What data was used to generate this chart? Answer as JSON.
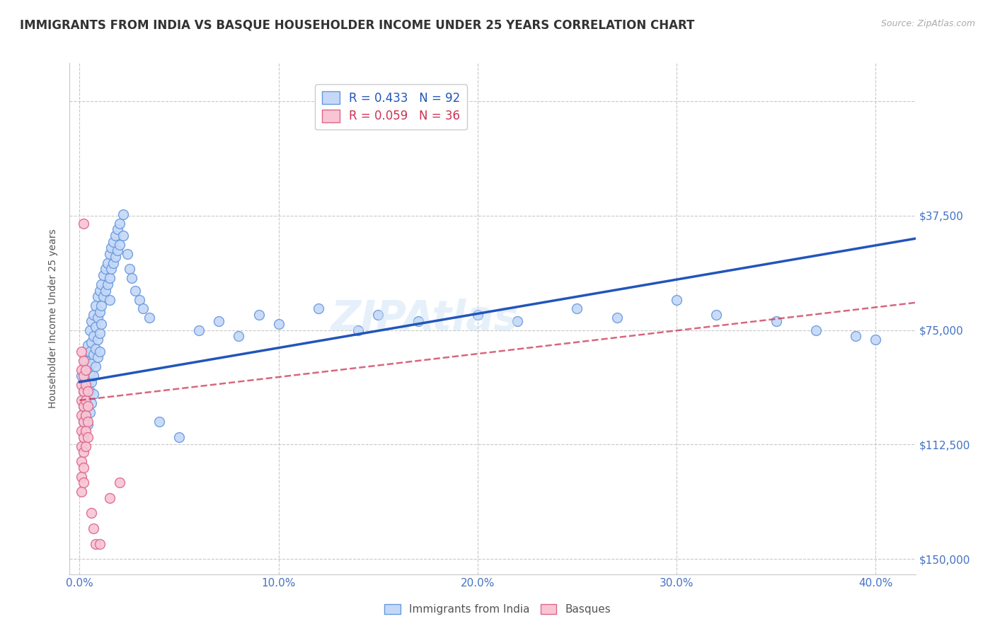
{
  "title": "IMMIGRANTS FROM INDIA VS BASQUE HOUSEHOLDER INCOME UNDER 25 YEARS CORRELATION CHART",
  "source": "Source: ZipAtlas.com",
  "xlabel_ticks": [
    "0.0%",
    "10.0%",
    "20.0%",
    "30.0%",
    "40.0%"
  ],
  "xlabel_tick_vals": [
    0.0,
    0.1,
    0.2,
    0.3,
    0.4
  ],
  "ylabel": "Householder Income Under 25 years",
  "ylabel_ticks": [
    0,
    37500,
    75000,
    112500,
    150000
  ],
  "ylabel_tick_labels_right": [
    "$150,000",
    "$112,500",
    "$75,000",
    "$37,500",
    ""
  ],
  "ylabel_tick_labels_left": [
    "",
    "",
    "",
    "",
    ""
  ],
  "xlim": [
    -0.005,
    0.42
  ],
  "ylim": [
    -5000,
    162500
  ],
  "legend_entries": [
    {
      "label_r": "R = 0.433",
      "label_n": "N = 92",
      "color": "#aec6f5"
    },
    {
      "label_r": "R = 0.059",
      "label_n": "N = 36",
      "color": "#f5aec6"
    }
  ],
  "watermark": "ZIPAtlas",
  "title_color": "#333333",
  "axis_color": "#4472c4",
  "grid_color": "#c8c8c8",
  "india_color": "#c5d8f8",
  "india_edge_color": "#6699dd",
  "india_line_color": "#2255bb",
  "basque_color": "#f8c5d5",
  "basque_edge_color": "#dd6688",
  "basque_line_color": "#cc3355",
  "india_scatter": [
    [
      0.001,
      60000
    ],
    [
      0.002,
      55000
    ],
    [
      0.002,
      50000
    ],
    [
      0.002,
      45000
    ],
    [
      0.003,
      65000
    ],
    [
      0.003,
      58000
    ],
    [
      0.003,
      52000
    ],
    [
      0.003,
      47000
    ],
    [
      0.004,
      70000
    ],
    [
      0.004,
      63000
    ],
    [
      0.004,
      57000
    ],
    [
      0.004,
      50000
    ],
    [
      0.004,
      44000
    ],
    [
      0.005,
      75000
    ],
    [
      0.005,
      68000
    ],
    [
      0.005,
      61000
    ],
    [
      0.005,
      55000
    ],
    [
      0.005,
      48000
    ],
    [
      0.006,
      78000
    ],
    [
      0.006,
      71000
    ],
    [
      0.006,
      64000
    ],
    [
      0.006,
      58000
    ],
    [
      0.006,
      51000
    ],
    [
      0.007,
      80000
    ],
    [
      0.007,
      73000
    ],
    [
      0.007,
      67000
    ],
    [
      0.007,
      60000
    ],
    [
      0.007,
      54000
    ],
    [
      0.008,
      83000
    ],
    [
      0.008,
      76000
    ],
    [
      0.008,
      69000
    ],
    [
      0.008,
      63000
    ],
    [
      0.009,
      86000
    ],
    [
      0.009,
      79000
    ],
    [
      0.009,
      72000
    ],
    [
      0.009,
      66000
    ],
    [
      0.01,
      88000
    ],
    [
      0.01,
      81000
    ],
    [
      0.01,
      74000
    ],
    [
      0.01,
      68000
    ],
    [
      0.011,
      90000
    ],
    [
      0.011,
      83000
    ],
    [
      0.011,
      77000
    ],
    [
      0.012,
      93000
    ],
    [
      0.012,
      86000
    ],
    [
      0.013,
      95000
    ],
    [
      0.013,
      88000
    ],
    [
      0.014,
      97000
    ],
    [
      0.014,
      90000
    ],
    [
      0.015,
      100000
    ],
    [
      0.015,
      92000
    ],
    [
      0.015,
      85000
    ],
    [
      0.016,
      102000
    ],
    [
      0.016,
      95000
    ],
    [
      0.017,
      104000
    ],
    [
      0.017,
      97000
    ],
    [
      0.018,
      106000
    ],
    [
      0.018,
      99000
    ],
    [
      0.019,
      108000
    ],
    [
      0.019,
      101000
    ],
    [
      0.02,
      110000
    ],
    [
      0.02,
      103000
    ],
    [
      0.022,
      113000
    ],
    [
      0.022,
      106000
    ],
    [
      0.024,
      100000
    ],
    [
      0.025,
      95000
    ],
    [
      0.026,
      92000
    ],
    [
      0.028,
      88000
    ],
    [
      0.03,
      85000
    ],
    [
      0.032,
      82000
    ],
    [
      0.035,
      79000
    ],
    [
      0.04,
      45000
    ],
    [
      0.05,
      40000
    ],
    [
      0.06,
      75000
    ],
    [
      0.07,
      78000
    ],
    [
      0.08,
      73000
    ],
    [
      0.09,
      80000
    ],
    [
      0.1,
      77000
    ],
    [
      0.12,
      82000
    ],
    [
      0.14,
      75000
    ],
    [
      0.15,
      80000
    ],
    [
      0.17,
      78000
    ],
    [
      0.2,
      80000
    ],
    [
      0.22,
      78000
    ],
    [
      0.25,
      82000
    ],
    [
      0.27,
      79000
    ],
    [
      0.3,
      85000
    ],
    [
      0.32,
      80000
    ],
    [
      0.35,
      78000
    ],
    [
      0.37,
      75000
    ],
    [
      0.39,
      73000
    ],
    [
      0.4,
      72000
    ]
  ],
  "basque_scatter": [
    [
      0.001,
      68000
    ],
    [
      0.001,
      62000
    ],
    [
      0.001,
      57000
    ],
    [
      0.001,
      52000
    ],
    [
      0.001,
      47000
    ],
    [
      0.001,
      42000
    ],
    [
      0.001,
      37000
    ],
    [
      0.001,
      32000
    ],
    [
      0.001,
      27000
    ],
    [
      0.001,
      22000
    ],
    [
      0.002,
      110000
    ],
    [
      0.002,
      65000
    ],
    [
      0.002,
      60000
    ],
    [
      0.002,
      55000
    ],
    [
      0.002,
      50000
    ],
    [
      0.002,
      45000
    ],
    [
      0.002,
      40000
    ],
    [
      0.002,
      35000
    ],
    [
      0.002,
      30000
    ],
    [
      0.002,
      25000
    ],
    [
      0.003,
      62000
    ],
    [
      0.003,
      57000
    ],
    [
      0.003,
      52000
    ],
    [
      0.003,
      47000
    ],
    [
      0.003,
      42000
    ],
    [
      0.003,
      37000
    ],
    [
      0.004,
      55000
    ],
    [
      0.004,
      50000
    ],
    [
      0.004,
      45000
    ],
    [
      0.004,
      40000
    ],
    [
      0.006,
      15000
    ],
    [
      0.007,
      10000
    ],
    [
      0.008,
      5000
    ],
    [
      0.01,
      5000
    ],
    [
      0.015,
      20000
    ],
    [
      0.02,
      25000
    ]
  ],
  "india_line_x": [
    0.0,
    0.42
  ],
  "india_line_y": [
    58000,
    105000
  ],
  "basque_line_x": [
    0.0,
    0.42
  ],
  "basque_line_y": [
    52000,
    84000
  ],
  "background_color": "#ffffff",
  "title_fontsize": 12,
  "axis_label_fontsize": 10,
  "tick_fontsize": 11
}
